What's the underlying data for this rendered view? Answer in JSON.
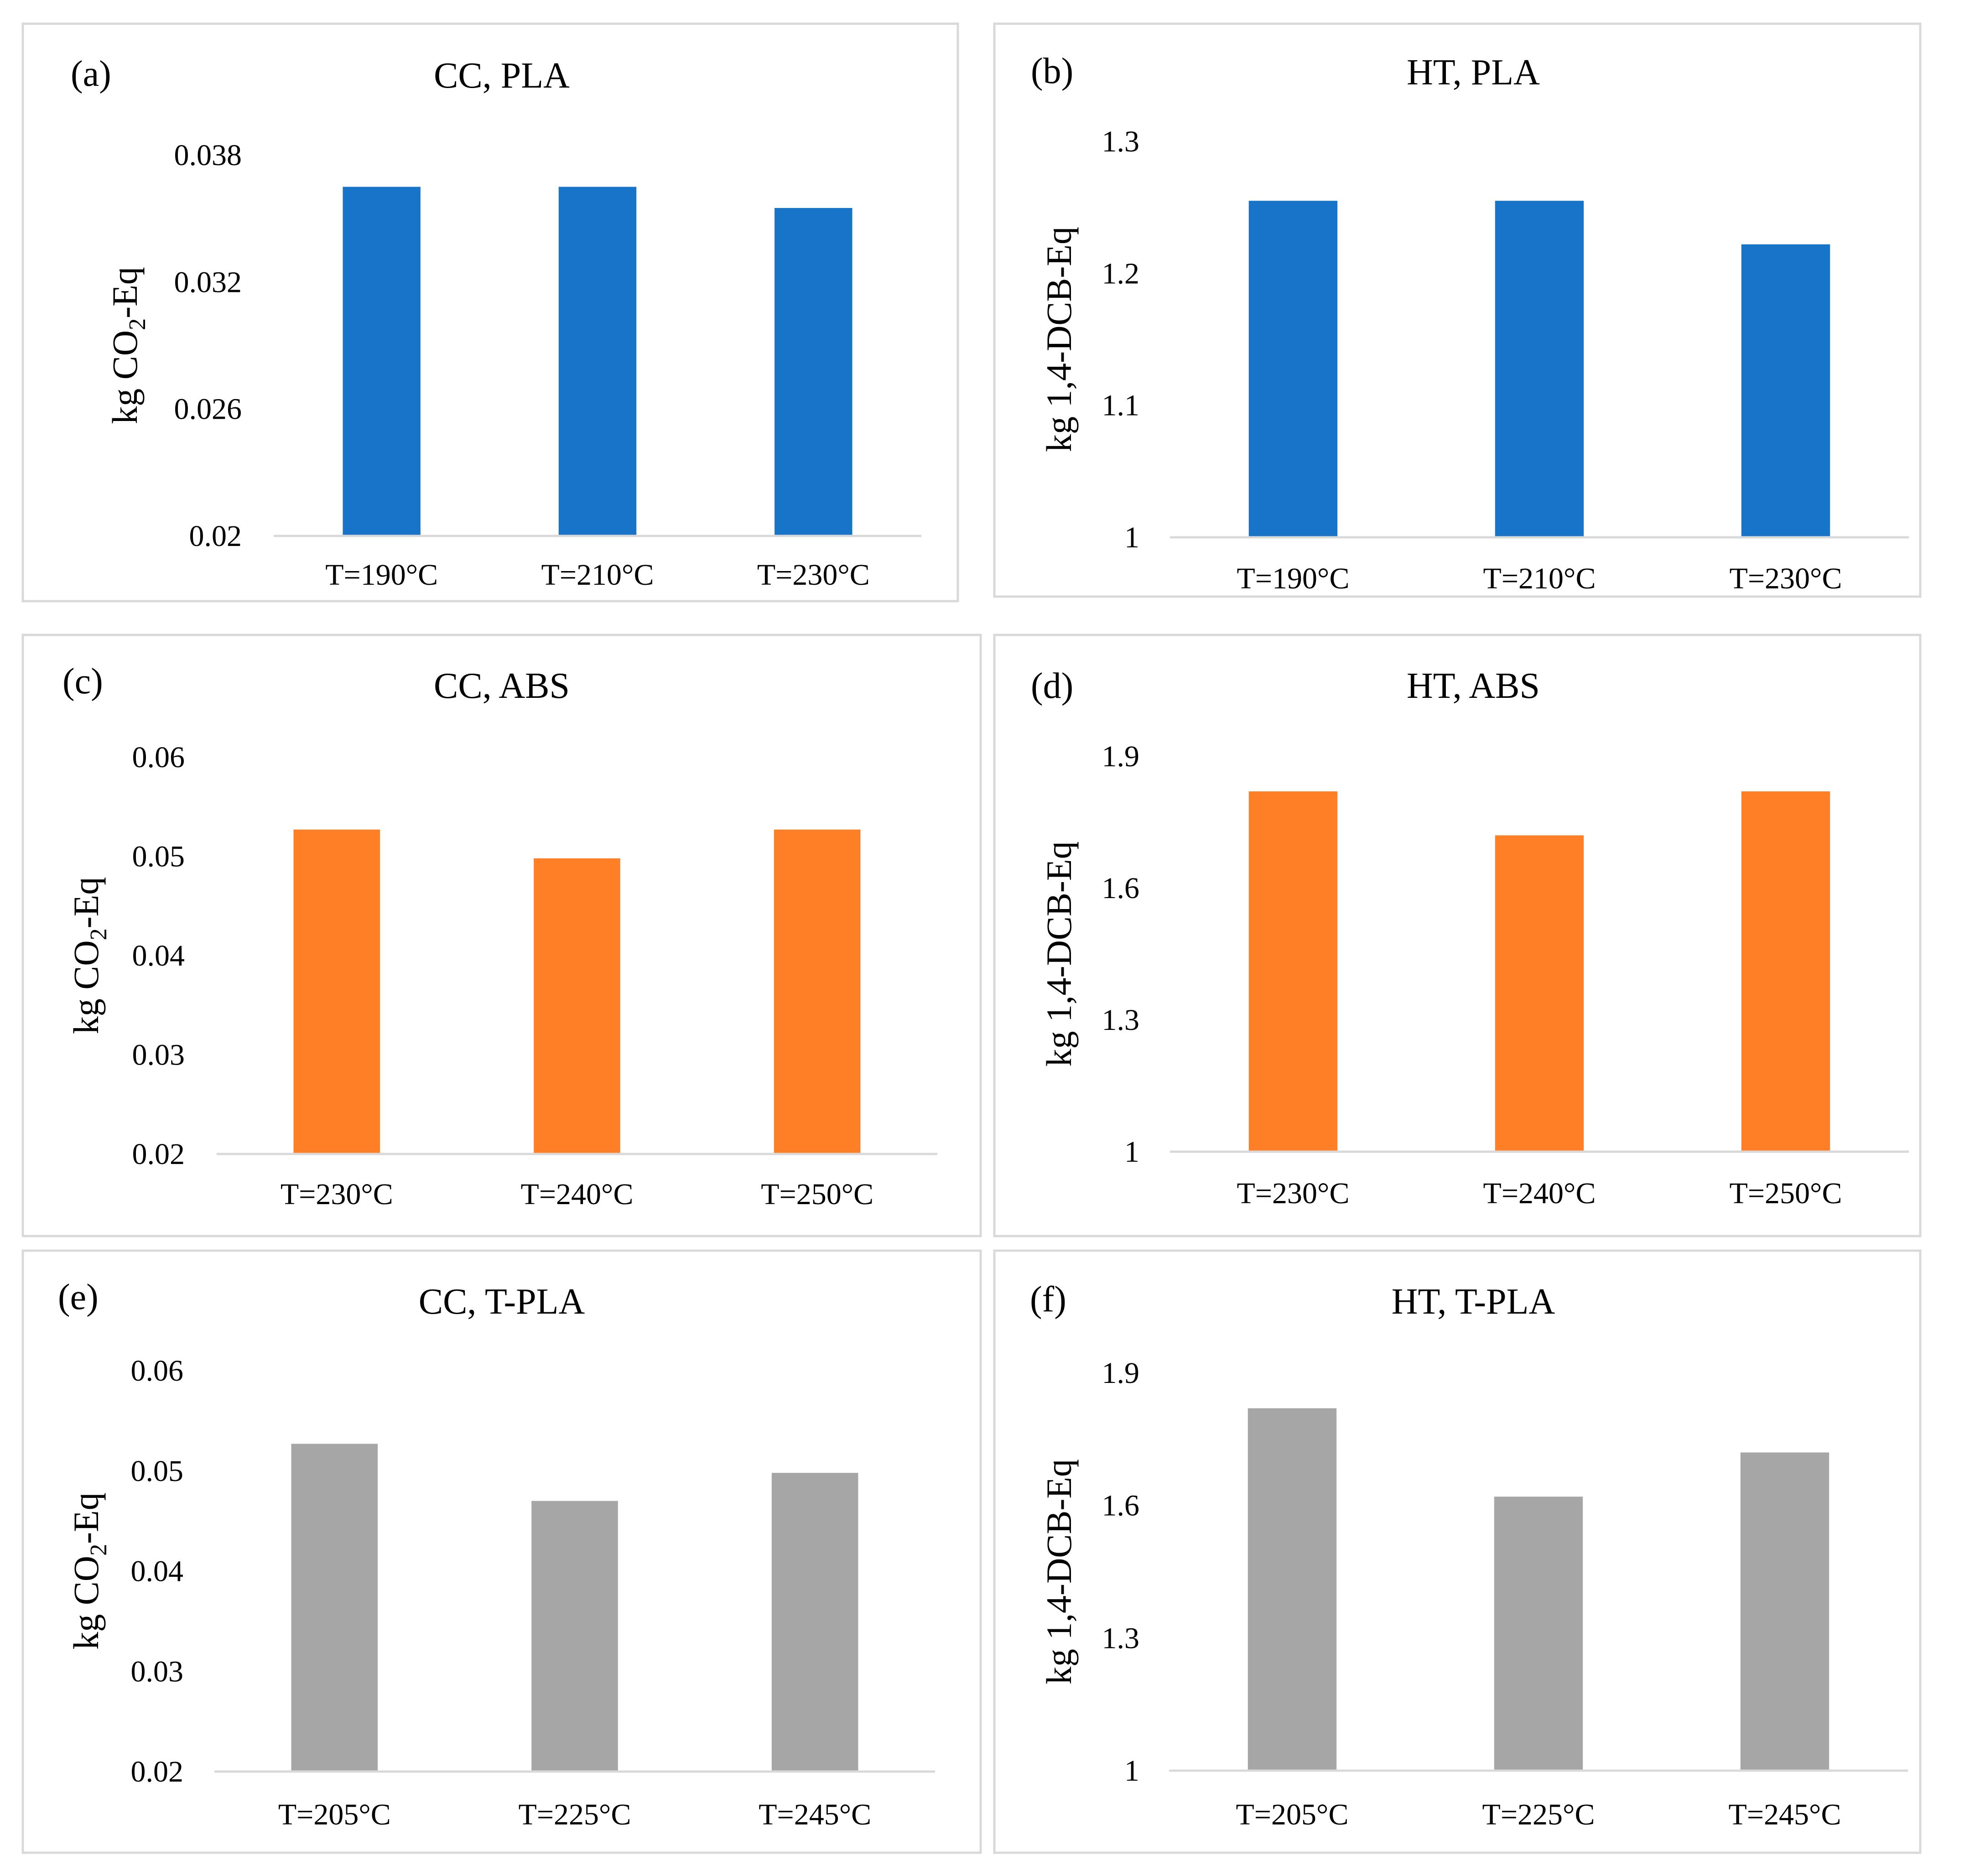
{
  "chart_data": [
    {
      "type": "bar",
      "panel_label": "(a)",
      "title": "CC, PLA",
      "ylabel": "kg CO2-Eq",
      "ylabel_parts": [
        "kg CO",
        "2",
        "-Eq"
      ],
      "categories": [
        "T=190°C",
        "T=210°C",
        "T=230°C"
      ],
      "values": [
        0.0365,
        0.0365,
        0.0355
      ],
      "ylim": [
        0.02,
        0.038
      ],
      "yticks": [
        0.02,
        0.026,
        0.032,
        0.038
      ],
      "ytick_labels": [
        "0.02",
        "0.026",
        "0.032",
        "0.038"
      ],
      "bar_color": "#1874C9",
      "grid": false
    },
    {
      "type": "bar",
      "panel_label": "(b)",
      "title": "HT, PLA",
      "ylabel": "kg 1,4-DCB-Eq",
      "ylabel_parts": [
        "kg 1,4-DCB-Eq"
      ],
      "categories": [
        "T=190°C",
        "T=210°C",
        "T=230°C"
      ],
      "values": [
        1.255,
        1.255,
        1.222
      ],
      "ylim": [
        1,
        1.3
      ],
      "yticks": [
        1,
        1.1,
        1.2,
        1.3
      ],
      "ytick_labels": [
        "1",
        "1.1",
        "1.2",
        "1.3"
      ],
      "bar_color": "#1874C9",
      "grid": false
    },
    {
      "type": "bar",
      "panel_label": "(c)",
      "title": "CC, ABS",
      "ylabel": "kg CO2-Eq",
      "ylabel_parts": [
        "kg CO",
        "2",
        "-Eq"
      ],
      "categories": [
        "T=230°C",
        "T=240°C",
        "T=250°C"
      ],
      "values": [
        0.0527,
        0.0498,
        0.0527
      ],
      "ylim": [
        0.02,
        0.06
      ],
      "yticks": [
        0.02,
        0.03,
        0.04,
        0.05,
        0.06
      ],
      "ytick_labels": [
        "0.02",
        "0.03",
        "0.04",
        "0.05",
        "0.06"
      ],
      "bar_color": "#FF7F27",
      "grid": false
    },
    {
      "type": "bar",
      "panel_label": "(d)",
      "title": "HT, ABS",
      "ylabel": "kg 1,4-DCB-Eq",
      "ylabel_parts": [
        "kg 1,4-DCB-Eq"
      ],
      "categories": [
        "T=230°C",
        "T=240°C",
        "T=250°C"
      ],
      "values": [
        1.82,
        1.72,
        1.82
      ],
      "ylim": [
        1,
        1.9
      ],
      "yticks": [
        1,
        1.3,
        1.6,
        1.9
      ],
      "ytick_labels": [
        "1",
        "1.3",
        "1.6",
        "1.9"
      ],
      "bar_color": "#FF7F27",
      "grid": false
    },
    {
      "type": "bar",
      "panel_label": "(e)",
      "title": "CC, T-PLA",
      "ylabel": "kg CO2-Eq",
      "ylabel_parts": [
        "kg CO",
        "2",
        "-Eq"
      ],
      "categories": [
        "T=205°C",
        "T=225°C",
        "T=245°C"
      ],
      "values": [
        0.0527,
        0.047,
        0.0498
      ],
      "ylim": [
        0.02,
        0.06
      ],
      "yticks": [
        0.02,
        0.03,
        0.04,
        0.05,
        0.06
      ],
      "ytick_labels": [
        "0.02",
        "0.03",
        "0.04",
        "0.05",
        "0.06"
      ],
      "bar_color": "#A6A6A6",
      "grid": false
    },
    {
      "type": "bar",
      "panel_label": "(f)",
      "title": "HT, T-PLA",
      "ylabel": "kg 1,4-DCB-Eq",
      "ylabel_parts": [
        "kg 1,4-DCB-Eq"
      ],
      "categories": [
        "T=205°C",
        "T=225°C",
        "T=245°C"
      ],
      "values": [
        1.82,
        1.62,
        1.72
      ],
      "ylim": [
        1,
        1.9
      ],
      "yticks": [
        1,
        1.3,
        1.6,
        1.9
      ],
      "ytick_labels": [
        "1",
        "1.3",
        "1.6",
        "1.9"
      ],
      "bar_color": "#A6A6A6",
      "grid": false
    }
  ]
}
